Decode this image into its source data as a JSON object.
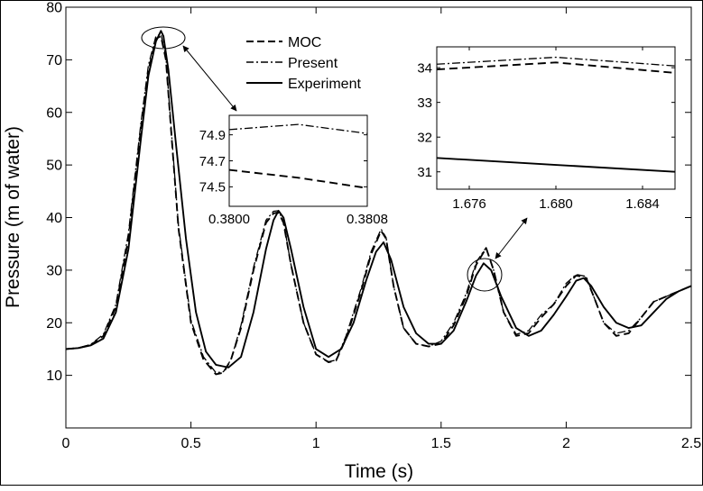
{
  "chart_data": [
    {
      "type": "line",
      "title": "",
      "xlabel": "Time (s)",
      "ylabel": "Pressure (m of water)",
      "xlim": [
        0,
        2.5
      ],
      "ylim": [
        0,
        80
      ],
      "xticks": [
        0,
        0.5,
        1,
        1.5,
        2,
        2.5
      ],
      "xtick_labels": [
        "0",
        "0.5",
        "1",
        "1.5",
        "2",
        "2.5"
      ],
      "yticks": [
        10,
        20,
        30,
        40,
        50,
        60,
        70,
        80
      ],
      "ytick_labels": [
        "10",
        "20",
        "30",
        "40",
        "50",
        "60",
        "70",
        "80"
      ],
      "grid": false,
      "legend_position": "top-center",
      "series": [
        {
          "name": "MOC",
          "style": "dashed",
          "x": [
            0,
            0.05,
            0.1,
            0.15,
            0.2,
            0.25,
            0.3,
            0.33,
            0.36,
            0.38,
            0.4,
            0.42,
            0.45,
            0.5,
            0.55,
            0.6,
            0.63,
            0.66,
            0.7,
            0.75,
            0.8,
            0.83,
            0.85,
            0.87,
            0.9,
            0.95,
            1.0,
            1.05,
            1.08,
            1.12,
            1.18,
            1.22,
            1.26,
            1.28,
            1.31,
            1.35,
            1.4,
            1.45,
            1.5,
            1.55,
            1.6,
            1.64,
            1.68,
            1.71,
            1.75,
            1.8,
            1.85,
            1.9,
            1.95,
            2.0,
            2.04,
            2.08,
            2.11,
            2.15,
            2.2,
            2.25,
            2.3,
            2.35,
            2.4,
            2.45,
            2.5
          ],
          "y": [
            15,
            15.2,
            15.8,
            17.5,
            23,
            36,
            57,
            68,
            74,
            74.5,
            70,
            57,
            38,
            20,
            13,
            10.2,
            10.5,
            13,
            19,
            30,
            39,
            40.8,
            41,
            39,
            31,
            20,
            14,
            12.5,
            12.8,
            17,
            26,
            33,
            37.5,
            36,
            27,
            19,
            16,
            15.5,
            16,
            19.5,
            25,
            31,
            34.2,
            30,
            22,
            17.5,
            18,
            21,
            23.5,
            27,
            29,
            28.5,
            25,
            20,
            17.5,
            18,
            21,
            24,
            25,
            26,
            27
          ]
        },
        {
          "name": "Present",
          "style": "dash-dot",
          "x": [
            0,
            0.05,
            0.1,
            0.15,
            0.2,
            0.25,
            0.3,
            0.33,
            0.36,
            0.38,
            0.4,
            0.42,
            0.45,
            0.5,
            0.55,
            0.6,
            0.63,
            0.66,
            0.7,
            0.75,
            0.8,
            0.83,
            0.85,
            0.87,
            0.9,
            0.95,
            1.0,
            1.05,
            1.08,
            1.12,
            1.18,
            1.22,
            1.26,
            1.28,
            1.31,
            1.35,
            1.4,
            1.45,
            1.5,
            1.55,
            1.6,
            1.64,
            1.68,
            1.71,
            1.75,
            1.8,
            1.85,
            1.9,
            1.95,
            2.0,
            2.04,
            2.08,
            2.11,
            2.15,
            2.2,
            2.25,
            2.3,
            2.35,
            2.4,
            2.45,
            2.5
          ],
          "y": [
            15,
            15.2,
            15.9,
            17.8,
            23.5,
            37,
            58,
            69,
            74.5,
            74.9,
            70.5,
            57.5,
            38.5,
            20.5,
            13.5,
            10.5,
            10.7,
            13,
            19.5,
            30.5,
            39.5,
            41.2,
            41.3,
            39.2,
            31,
            20,
            14,
            12.6,
            12.9,
            17.5,
            26.5,
            33.5,
            37.8,
            36.2,
            27,
            19,
            16,
            15.5,
            16.5,
            20,
            25.5,
            31.5,
            34.3,
            30,
            22,
            17.8,
            18.5,
            21.5,
            23.5,
            27.5,
            29.2,
            28.8,
            25,
            20,
            18,
            18.5,
            21,
            24,
            25,
            26,
            27
          ]
        },
        {
          "name": "Experiment",
          "style": "solid",
          "x": [
            0,
            0.05,
            0.1,
            0.15,
            0.2,
            0.25,
            0.3,
            0.33,
            0.36,
            0.38,
            0.39,
            0.41,
            0.44,
            0.48,
            0.52,
            0.56,
            0.6,
            0.65,
            0.7,
            0.75,
            0.8,
            0.83,
            0.85,
            0.87,
            0.9,
            0.95,
            1.0,
            1.05,
            1.1,
            1.15,
            1.2,
            1.24,
            1.27,
            1.3,
            1.35,
            1.4,
            1.45,
            1.5,
            1.55,
            1.6,
            1.64,
            1.67,
            1.7,
            1.74,
            1.8,
            1.85,
            1.9,
            1.95,
            2.0,
            2.04,
            2.07,
            2.1,
            2.15,
            2.2,
            2.25,
            2.3,
            2.35,
            2.4,
            2.45,
            2.5
          ],
          "y": [
            15,
            15.2,
            15.7,
            17,
            22,
            34,
            55,
            67,
            73.5,
            75.5,
            74.5,
            68,
            54,
            36,
            22,
            14.5,
            12,
            11.5,
            13.5,
            22,
            34,
            39.5,
            41.3,
            40,
            34,
            23,
            15,
            13.5,
            15,
            20,
            28,
            33.5,
            35.3,
            32,
            23,
            18,
            16,
            16,
            18.5,
            24,
            29,
            31.3,
            30,
            25,
            19,
            17.5,
            18.5,
            21.5,
            25,
            28,
            28.5,
            27,
            23,
            20,
            19,
            19.5,
            22,
            24.5,
            26,
            27
          ]
        }
      ],
      "annotations": [
        {
          "type": "ellipse",
          "center": [
            0.38,
            75.3
          ]
        },
        {
          "type": "ellipse",
          "center": [
            1.68,
            32.3
          ]
        }
      ]
    },
    {
      "type": "line",
      "title": "",
      "xlabel": "",
      "ylabel": "",
      "xlim": [
        0.38,
        0.3808
      ],
      "ylim": [
        74.35,
        75.05
      ],
      "xticks": [
        0.38,
        0.3808
      ],
      "xtick_labels": [
        "0.3800",
        "0.3808"
      ],
      "yticks": [
        74.5,
        74.7,
        74.9
      ],
      "ytick_labels": [
        "74.5",
        "74.7",
        "74.9"
      ],
      "grid": false,
      "series": [
        {
          "name": "Present",
          "style": "dash-dot",
          "x": [
            0.38,
            0.3804,
            0.3808
          ],
          "y": [
            74.94,
            74.98,
            74.91
          ]
        },
        {
          "name": "MOC",
          "style": "dashed",
          "x": [
            0.38,
            0.3804,
            0.3808
          ],
          "y": [
            74.63,
            74.57,
            74.49
          ]
        }
      ]
    },
    {
      "type": "line",
      "title": "",
      "xlabel": "",
      "ylabel": "",
      "xlim": [
        1.6745,
        1.6855
      ],
      "ylim": [
        30.5,
        34.6
      ],
      "xticks": [
        1.676,
        1.68,
        1.684
      ],
      "xtick_labels": [
        "1.676",
        "1.680",
        "1.684"
      ],
      "yticks": [
        31,
        32,
        33,
        34
      ],
      "ytick_labels": [
        "31",
        "32",
        "33",
        "34"
      ],
      "grid": false,
      "series": [
        {
          "name": "Present",
          "style": "dash-dot",
          "x": [
            1.6745,
            1.68,
            1.6855
          ],
          "y": [
            34.1,
            34.3,
            34.05
          ]
        },
        {
          "name": "MOC",
          "style": "dashed",
          "x": [
            1.6745,
            1.68,
            1.6855
          ],
          "y": [
            33.95,
            34.15,
            33.85
          ]
        },
        {
          "name": "Experiment",
          "style": "solid",
          "x": [
            1.6745,
            1.68,
            1.6855
          ],
          "y": [
            31.4,
            31.2,
            31.0
          ]
        }
      ]
    }
  ],
  "legend": {
    "moc": "MOC",
    "present": "Present",
    "experiment": "Experiment"
  }
}
